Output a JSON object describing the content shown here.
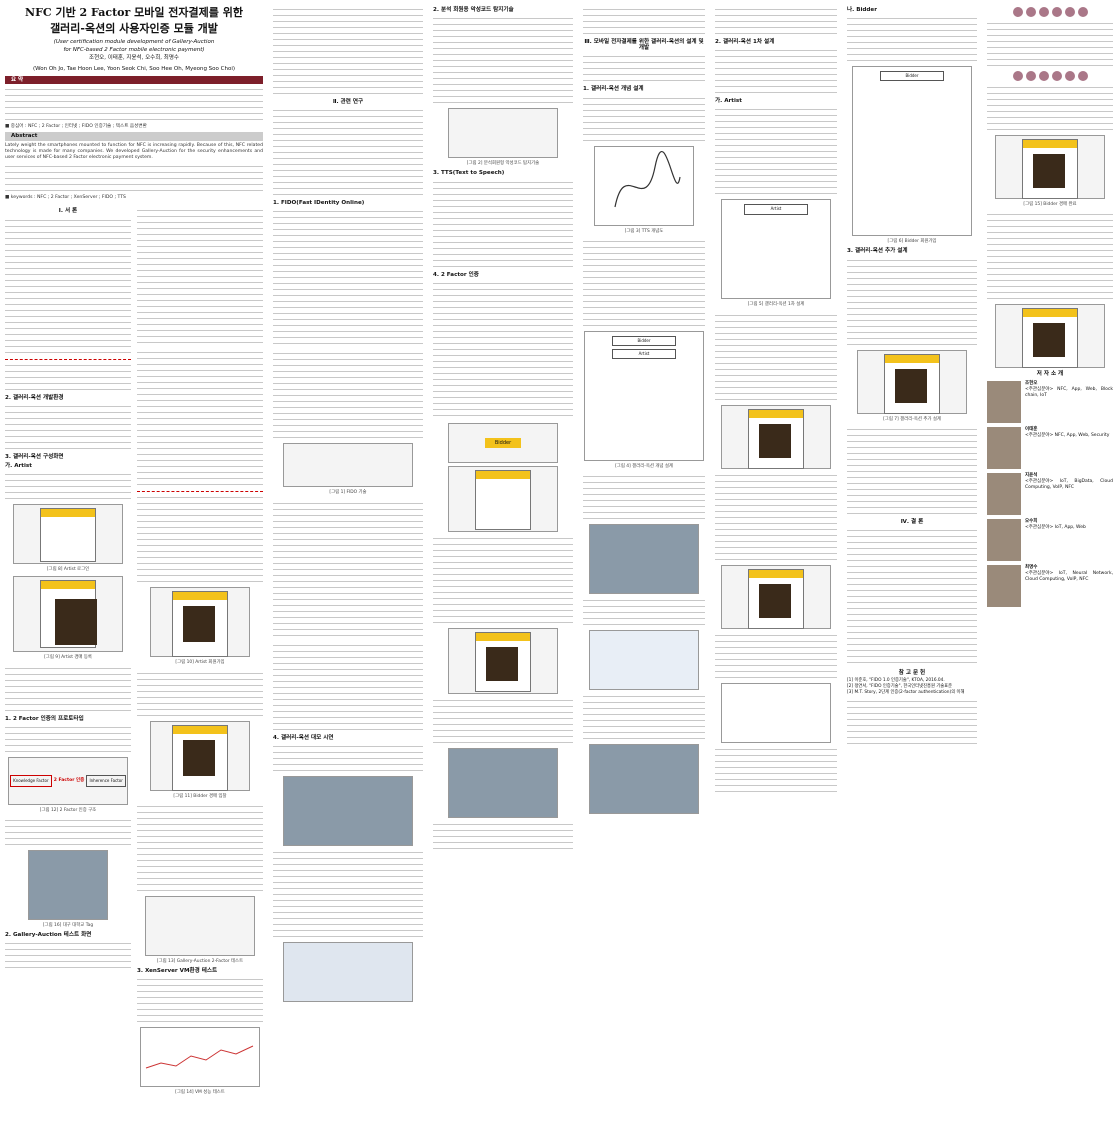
{
  "paper": {
    "title_line1": "NFC 기반 2 Factor 모바일 전자결제를 위한",
    "title_line2": "갤러리-옥션의 사용자인증 모듈 개발",
    "subtitle_line1": "(User certification module development of Gallery-Auction",
    "subtitle_line2": "for NFC-based 2 Factor mobile electronic payment)",
    "authors_ko": "조현오, 이태훈, 지윤석, 오수희, 최명수",
    "authors_en": "(Won Oh Jo, Tae Hoon Lee, Yoon Seok Chi, Soo Hee Oh, Myeong Soo Choi)"
  },
  "sections": {
    "abstract_ko": "요 약",
    "abstract_en": "Abstract",
    "keywords_ko": "■ 중심어 : NFC ; 2 Factor ; 인터넷 ; FIDO 인증기술 ; 텍스트 음성변환",
    "keywords_en": "■ keywords : NFC ; 2 Factor ; XenServer ; FIDO ; TTS",
    "abstract_en_text": "Lately weight the smartphones mounted to function for NFC is increasing rapidly. Because of this, NFC related technology is made for many companies. We developed Gallery-Auction for the security enhancements and user services of NFC-based 2 Factor electronic payment system.",
    "s1": "Ⅰ. 서 론",
    "s2": "Ⅱ. 관련 연구",
    "s2_1": "1. FIDO(Fast IDentity Online)",
    "s2_2": "2. 분석 회원용 악성코드 탐지기술",
    "s2_3": "3. TTS(Text to Speech)",
    "s2_4": "4. 2 Factor 인증",
    "s3": "Ⅲ. 모바일 전자결제를 위한 갤러리-옥션의 설계 및 개발",
    "s3_1": "1. 갤러리-옥션 개념 설계",
    "s3_2": "2. 갤러리-옥션 1차 설계",
    "s3_2a": "가. Artist",
    "s3_2b": "나. Bidder",
    "s3_3": "3. 갤러리-옥션 추가 설계",
    "s4_1": "1. 개발환경",
    "s4_2": "2. 갤러리-옥션 개발환경",
    "s4_3": "3. 갤러리-옥션 구성화면",
    "s4_3a": "가. Artist",
    "s5_1": "1. 2 Factor 인증의 프로토타입",
    "s5_2": "2. Gallery-Auction 테스트 화면",
    "s5_3": "3. XenServer VM환경 테스트",
    "s6": "4. 갤러리-옥션 대모 시연",
    "conclusion": "Ⅳ. 결 론",
    "references": "참 고 문 헌",
    "authors_section": "저 자 소 개"
  },
  "captions": {
    "f1": "[그림 1] FIDO 기술",
    "f2": "[그림 2] 분석회원형 악성코드 탐지기술",
    "f3": "[그림 3] TTS 개념도",
    "f4": "[그림 4] 갤러리-옥션 개념 설계",
    "f5": "[그림 5] 갤러리-옥션 1차 설계",
    "f6": "[그림 6] Bidder 회원가입",
    "f7": "[그림 7] 갤러리-옥션 추가 설계",
    "f8": "[그림 8] Artist 로그인",
    "f9": "[그림 9] Artist 경매 등록",
    "f10": "[그림 10] Artist 회원가입",
    "f11": "[그림 11] Bidder 경매 입찰",
    "f12": "[그림 12] 2 Factor 인증 구조",
    "f13": "[그림 13] Gallery-Auction 2-Factor 테스트",
    "f14": "[그림 14] VM 성능 테스트",
    "f15": "[그림 15] Bidder 경매 완료",
    "f16": "[그림 16] 대구 대학교 Tag"
  },
  "figure_text": {
    "bidder": "Bidder",
    "artist": "Artist",
    "knowledge_factor": "Knowledge Factor",
    "inherence_factor": "Inherence Factor",
    "two_factor": "2 Factor 인증"
  },
  "authors": [
    {
      "name": "조현오",
      "interest": "<주관심분야> NFC, App, Web, Block chain, IoT"
    },
    {
      "name": "이태훈",
      "interest": "<주관심분야> NFC, App, Web, Security"
    },
    {
      "name": "지윤석",
      "interest": "<주관심분야> IoT, BigData, Cloud Computing, VoIP, NFC"
    },
    {
      "name": "오수희",
      "interest": "<주관심분야> IoT, App, Web"
    },
    {
      "name": "최명수",
      "interest": "<주관심분야> IoT, Neural Network, Cloud Computing, VoIP, NFC"
    }
  ],
  "references": [
    "[1] 이준호, \"FIDO 1.0 인증기술\", KTOA, 2016.04.",
    "[2] 정연서, \"FIDO 인증기술\", 한국인터넷진흥원 기술표준",
    "[3] M.T. Story, 2단계 인증(2-factor authentication)의 이해"
  ]
}
